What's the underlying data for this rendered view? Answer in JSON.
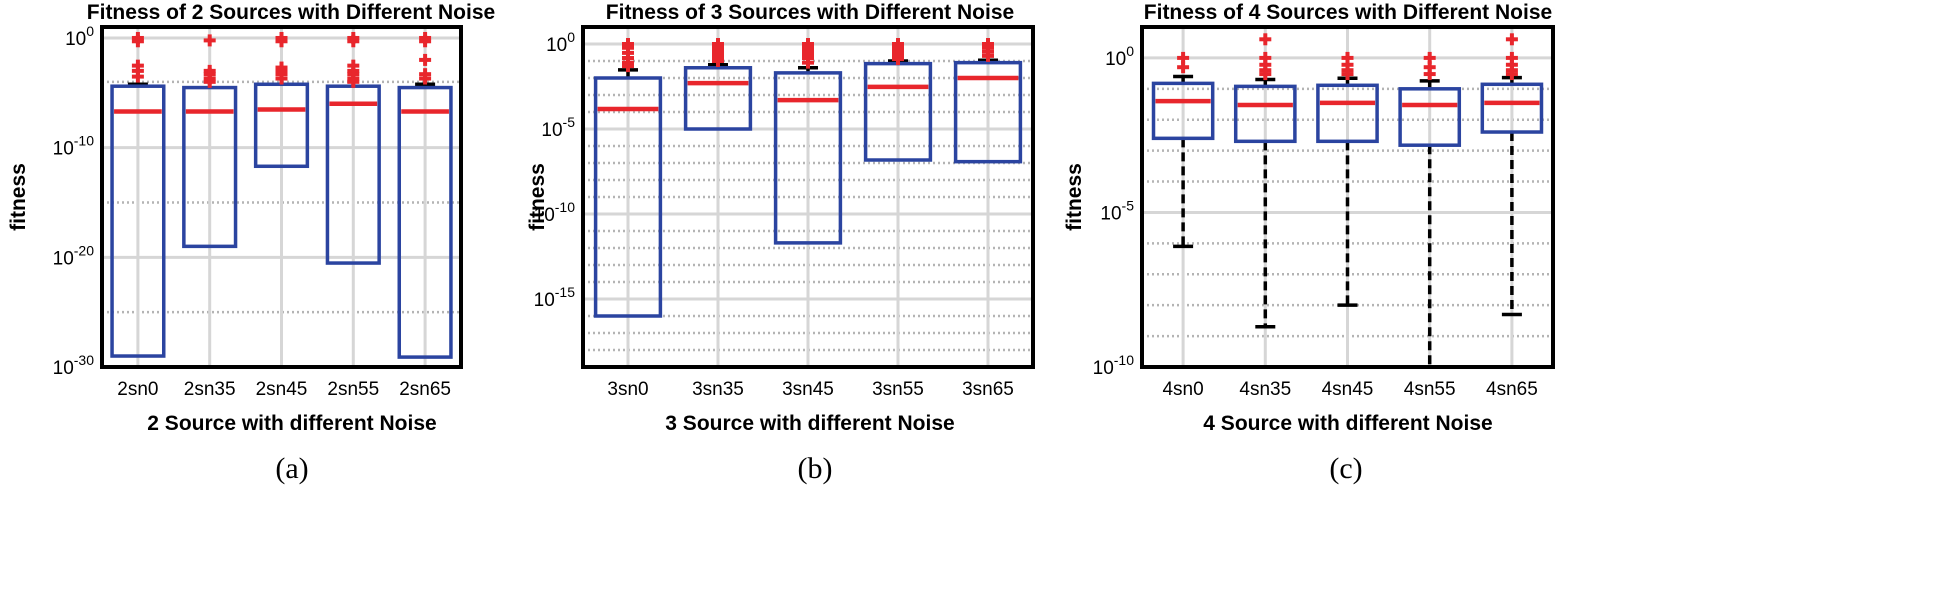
{
  "chart_data": [
    {
      "type": "box",
      "title": "Fitness of 2 Sources with Different Noise",
      "xlabel": "2 Source with different Noise",
      "ylabel": "fitness",
      "panel_label": "(a)",
      "yscale": "log",
      "ylim": [
        1e-30,
        10
      ],
      "ytick_labels": [
        {
          "base": "10",
          "exp": "0",
          "value": 1
        },
        {
          "base": "10",
          "exp": "-10",
          "value": 1e-10
        },
        {
          "base": "10",
          "exp": "-20",
          "value": 1e-20
        },
        {
          "base": "10",
          "exp": "-30",
          "value": 1e-30
        }
      ],
      "dotted_grid": [
        0.0001,
        1e-15,
        1e-25
      ],
      "categories": [
        "2sn0",
        "2sn35",
        "2sn45",
        "2sn55",
        "2sn65"
      ],
      "boxes": [
        {
          "q1": 1e-29,
          "median": 2e-07,
          "q3": 4e-05,
          "whisker_low": null,
          "whisker_high": 6e-05,
          "outliers": [
            1,
            0.5,
            0.003,
            0.001,
            0.0003
          ]
        },
        {
          "q1": 1e-19,
          "median": 2e-07,
          "q3": 3e-05,
          "whisker_low": null,
          "whisker_high": null,
          "outliers": [
            0.6,
            0.001,
            0.0005,
            0.0002,
            0.0001
          ]
        },
        {
          "q1": 2e-12,
          "median": 3e-07,
          "q3": 6e-05,
          "whisker_low": null,
          "whisker_high": null,
          "outliers": [
            1,
            0.5,
            0.002,
            0.001,
            0.0005,
            0.0002
          ]
        },
        {
          "q1": 3e-21,
          "median": 1e-06,
          "q3": 4e-05,
          "whisker_low": null,
          "whisker_high": null,
          "outliers": [
            1,
            0.5,
            0.003,
            0.001,
            0.0005,
            0.0002,
            0.0001
          ]
        },
        {
          "q1": 8e-30,
          "median": 2e-07,
          "q3": 3e-05,
          "whisker_low": null,
          "whisker_high": 6e-05,
          "outliers": [
            1,
            0.5,
            0.01,
            0.0005,
            0.0002
          ]
        }
      ]
    },
    {
      "type": "box",
      "title": "Fitness of 3 Sources with Different Noise",
      "xlabel": "3 Source with different Noise",
      "ylabel": "fitness",
      "panel_label": "(b)",
      "yscale": "log",
      "ylim": [
        1e-19,
        10
      ],
      "ytick_labels": [
        {
          "base": "10",
          "exp": "0",
          "value": 1
        },
        {
          "base": "10",
          "exp": "-5",
          "value": 1e-05
        },
        {
          "base": "10",
          "exp": "-10",
          "value": 1e-10
        },
        {
          "base": "10",
          "exp": "-15",
          "value": 1e-15
        }
      ],
      "dotted_grid": [
        0.1,
        0.01,
        0.001,
        0.0001,
        1e-06,
        1e-07,
        1e-08,
        1e-09,
        1e-11,
        1e-12,
        1e-13,
        1e-14,
        1e-16,
        1e-17,
        1e-18
      ],
      "categories": [
        "3sn0",
        "3sn35",
        "3sn45",
        "3sn55",
        "3sn65"
      ],
      "boxes": [
        {
          "q1": 1e-16,
          "median": 0.00015,
          "q3": 0.01,
          "whisker_low": null,
          "whisker_high": 0.03,
          "outliers": [
            1,
            0.6,
            0.3,
            0.15,
            0.08,
            0.05
          ]
        },
        {
          "q1": 1e-05,
          "median": 0.005,
          "q3": 0.04,
          "whisker_low": null,
          "whisker_high": 0.06,
          "outliers": [
            1,
            0.6,
            0.4,
            0.25,
            0.15,
            0.1
          ]
        },
        {
          "q1": 2e-12,
          "median": 0.0005,
          "q3": 0.02,
          "whisker_low": null,
          "whisker_high": 0.04,
          "outliers": [
            1,
            0.6,
            0.4,
            0.25,
            0.15,
            0.08
          ]
        },
        {
          "q1": 1.5e-07,
          "median": 0.003,
          "q3": 0.07,
          "whisker_low": null,
          "whisker_high": 0.1,
          "outliers": [
            1,
            0.7,
            0.5,
            0.35,
            0.25,
            0.18,
            0.13
          ]
        },
        {
          "q1": 1.2e-07,
          "median": 0.01,
          "q3": 0.08,
          "whisker_low": null,
          "whisker_high": 0.11,
          "outliers": [
            1,
            0.6,
            0.35,
            0.2
          ]
        }
      ]
    },
    {
      "type": "box",
      "title": "Fitness of 4 Sources with Different Noise",
      "xlabel": "4 Source with different Noise",
      "ylabel": "fitness",
      "panel_label": "(c)",
      "yscale": "log",
      "ylim": [
        1e-10,
        10
      ],
      "ytick_labels": [
        {
          "base": "10",
          "exp": "0",
          "value": 1
        },
        {
          "base": "10",
          "exp": "-5",
          "value": 1e-05
        },
        {
          "base": "10",
          "exp": "-10",
          "value": 1e-10
        }
      ],
      "dotted_grid": [
        0.1,
        0.01,
        0.001,
        0.0001,
        1e-06,
        1e-07,
        1e-08,
        1e-09
      ],
      "categories": [
        "4sn0",
        "4sn35",
        "4sn45",
        "4sn55",
        "4sn65"
      ],
      "boxes": [
        {
          "q1": 0.0025,
          "median": 0.04,
          "q3": 0.15,
          "whisker_low": 8e-07,
          "whisker_high": 0.25,
          "outliers": [
            1,
            0.5
          ]
        },
        {
          "q1": 0.002,
          "median": 0.03,
          "q3": 0.12,
          "whisker_low": 2e-09,
          "whisker_high": 0.2,
          "outliers": [
            4,
            1,
            0.6,
            0.4,
            0.3
          ]
        },
        {
          "q1": 0.002,
          "median": 0.035,
          "q3": 0.13,
          "whisker_low": 1e-08,
          "whisker_high": 0.22,
          "outliers": [
            1,
            0.6,
            0.4,
            0.3
          ]
        },
        {
          "q1": 0.0015,
          "median": 0.03,
          "q3": 0.1,
          "whisker_low": 1e-10,
          "whisker_high": 0.18,
          "outliers": [
            1,
            0.5,
            0.3
          ]
        },
        {
          "q1": 0.004,
          "median": 0.035,
          "q3": 0.14,
          "whisker_low": 5e-09,
          "whisker_high": 0.23,
          "outliers": [
            4,
            1,
            0.6,
            0.4,
            0.3
          ]
        }
      ]
    }
  ],
  "colors": {
    "box": "#2b44a0",
    "median": "#e8262c",
    "outlier": "#e8262c",
    "whisker": "#000000",
    "grid": "#d6d6d6",
    "grid_dotted": "#b4b4b4",
    "frame": "#000000"
  }
}
